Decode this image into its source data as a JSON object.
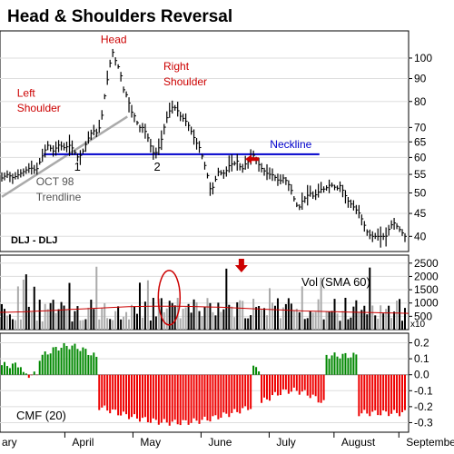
{
  "chart_data": {
    "title": "Head & Shoulders Reversal",
    "ticker_label": "DLJ - DLJ",
    "x_months": [
      "ary",
      "April",
      "May",
      "June",
      "July",
      "August",
      "September"
    ],
    "colors": {
      "price": "#000000",
      "neckline": "#0000cc",
      "trendline": "#aaaaaa",
      "annotation": "#cc0000",
      "vol_up": "#000000",
      "vol_down": "#aaaaaa",
      "vol_sma": "#cc0000",
      "cmf_pos": "#008800",
      "cmf_neg": "#ee0000"
    },
    "price_panel": {
      "type": "line",
      "scale": "log",
      "ylim": [
        37,
        115
      ],
      "yticks": [
        40,
        45,
        50,
        55,
        60,
        65,
        70,
        80,
        90,
        100
      ],
      "points": [
        [
          0,
          54
        ],
        [
          3,
          55
        ],
        [
          6,
          54
        ],
        [
          9,
          55
        ],
        [
          12,
          56
        ],
        [
          15,
          57
        ],
        [
          18,
          56
        ],
        [
          21,
          60
        ],
        [
          24,
          64
        ],
        [
          27,
          62
        ],
        [
          30,
          64
        ],
        [
          33,
          63
        ],
        [
          36,
          64
        ],
        [
          38,
          62
        ],
        [
          40,
          60
        ],
        [
          42,
          61
        ],
        [
          44,
          64
        ],
        [
          46,
          67
        ],
        [
          48,
          69
        ],
        [
          50,
          68
        ],
        [
          52,
          71
        ],
        [
          54,
          82
        ],
        [
          56,
          92
        ],
        [
          58,
          104
        ],
        [
          60,
          98
        ],
        [
          62,
          94
        ],
        [
          64,
          85
        ],
        [
          66,
          82
        ],
        [
          68,
          76
        ],
        [
          70,
          74
        ],
        [
          72,
          70
        ],
        [
          74,
          70
        ],
        [
          76,
          68
        ],
        [
          78,
          64
        ],
        [
          80,
          61
        ],
        [
          82,
          62
        ],
        [
          84,
          66
        ],
        [
          86,
          72
        ],
        [
          88,
          76
        ],
        [
          90,
          78
        ],
        [
          92,
          77
        ],
        [
          94,
          74
        ],
        [
          96,
          73
        ],
        [
          98,
          71
        ],
        [
          100,
          68
        ],
        [
          102,
          65
        ],
        [
          104,
          63
        ],
        [
          106,
          59
        ],
        [
          108,
          55
        ],
        [
          110,
          50
        ],
        [
          112,
          53
        ],
        [
          114,
          56
        ],
        [
          116,
          55
        ],
        [
          118,
          56
        ],
        [
          120,
          58
        ],
        [
          122,
          58
        ],
        [
          124,
          59
        ],
        [
          126,
          56
        ],
        [
          128,
          58
        ],
        [
          130,
          59
        ],
        [
          132,
          61
        ],
        [
          134,
          59
        ],
        [
          136,
          57
        ],
        [
          138,
          56
        ],
        [
          140,
          55
        ],
        [
          142,
          55
        ],
        [
          144,
          54
        ],
        [
          146,
          53
        ],
        [
          148,
          54
        ],
        [
          150,
          53
        ],
        [
          152,
          51
        ],
        [
          154,
          48
        ],
        [
          156,
          46
        ],
        [
          158,
          48
        ],
        [
          160,
          49
        ],
        [
          162,
          50
        ],
        [
          164,
          49
        ],
        [
          166,
          50
        ],
        [
          168,
          51
        ],
        [
          170,
          51
        ],
        [
          172,
          52
        ],
        [
          174,
          52
        ],
        [
          176,
          51
        ],
        [
          178,
          52
        ],
        [
          180,
          50
        ],
        [
          182,
          48
        ],
        [
          184,
          47
        ],
        [
          186,
          46
        ],
        [
          188,
          45
        ],
        [
          190,
          43
        ],
        [
          192,
          41
        ],
        [
          194,
          40
        ],
        [
          196,
          40
        ],
        [
          198,
          40
        ],
        [
          200,
          40
        ],
        [
          202,
          40
        ],
        [
          204,
          42
        ],
        [
          206,
          43
        ],
        [
          208,
          42
        ],
        [
          210,
          41
        ],
        [
          212,
          40
        ]
      ],
      "annotations": [
        {
          "text": "Head",
          "x": 52,
          "price": 108,
          "color": "red"
        },
        {
          "text": "Left",
          "x": 8,
          "price": 82,
          "color": "red"
        },
        {
          "text": "Shoulder",
          "x": 8,
          "price": 76,
          "color": "red"
        },
        {
          "text": "Right",
          "x": 85,
          "price": 94,
          "color": "red"
        },
        {
          "text": "Shoulder",
          "x": 85,
          "price": 87,
          "color": "red"
        },
        {
          "text": "Neckline",
          "x": 141,
          "price": 63,
          "color": "blue"
        },
        {
          "text": "1",
          "x": 38,
          "price": 56,
          "color": "black"
        },
        {
          "text": "2",
          "x": 80,
          "price": 56,
          "color": "black"
        },
        {
          "text": "OCT 98",
          "x": 18,
          "price": 52,
          "color": "grey"
        },
        {
          "text": "Trendline",
          "x": 18,
          "price": 48,
          "color": "grey"
        }
      ],
      "neckline": {
        "x1": 22,
        "x2": 167,
        "price": 61
      },
      "trendline": {
        "x1": 0,
        "p1": 49,
        "x2": 66,
        "p2": 74
      }
    },
    "volume_panel": {
      "label": "Vol (SMA 60)",
      "multiplier_label": "x10",
      "ylim": [
        0,
        2800
      ],
      "yticks": [
        500,
        1000,
        1500,
        2000,
        2500
      ],
      "sma": [
        650,
        660,
        670,
        690,
        710,
        730,
        760,
        780,
        800,
        820,
        840,
        860,
        870,
        880,
        880,
        880,
        875,
        860,
        850,
        840,
        820,
        800,
        780,
        760,
        740,
        720,
        700,
        690,
        680,
        670,
        660,
        650,
        640,
        630,
        620,
        610
      ]
    },
    "cmf_panel": {
      "label": "CMF (20)",
      "ylim": [
        -0.36,
        0.26
      ],
      "yticks": [
        -0.3,
        -0.2,
        -0.1,
        0.0,
        0.1,
        0.2
      ],
      "ytick_labels": [
        "-0.3",
        "-0.2",
        "-0.1",
        "0.0",
        "0.1",
        "0.2"
      ]
    }
  }
}
